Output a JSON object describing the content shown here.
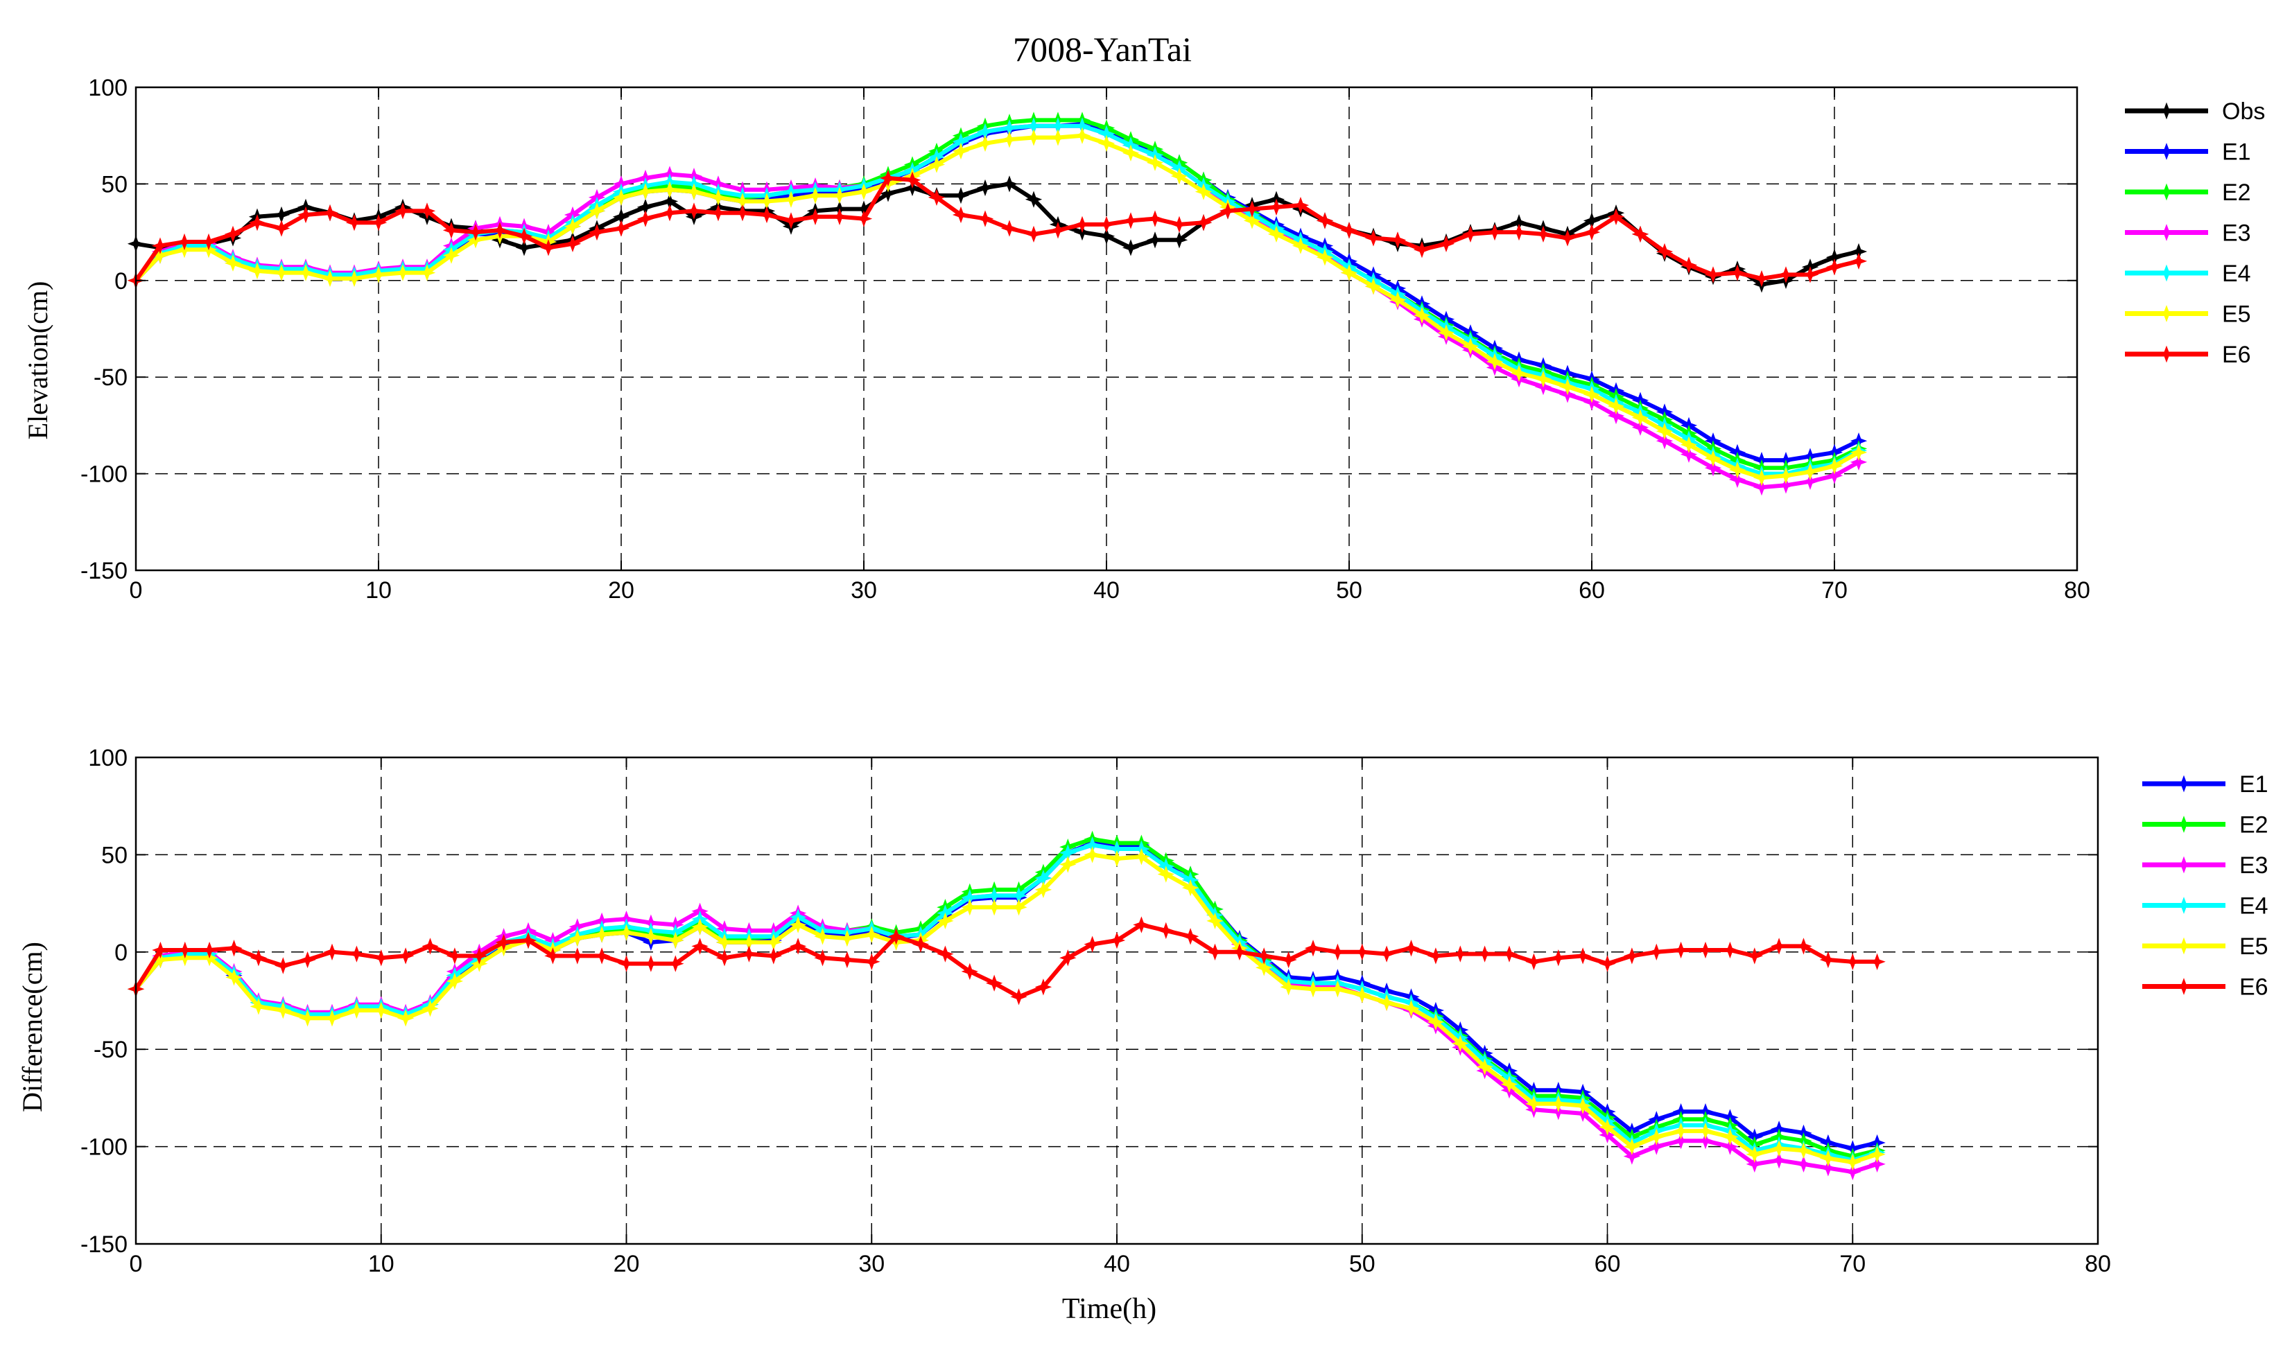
{
  "figure_title": "7008-YanTai",
  "chart_data": [
    {
      "type": "line",
      "id": "elevation",
      "title": "7008-YanTai",
      "xlabel": "",
      "ylabel": "Elevation(cm)",
      "xlim": [
        0,
        80
      ],
      "ylim": [
        -150,
        100
      ],
      "xticks": [
        0,
        10,
        20,
        30,
        40,
        50,
        60,
        70,
        80
      ],
      "yticks": [
        100,
        50,
        0,
        -50,
        -100,
        -150
      ],
      "grid": true,
      "legend_position": "outside-right",
      "x": [
        0,
        1,
        2,
        3,
        4,
        5,
        6,
        7,
        8,
        9,
        10,
        11,
        12,
        13,
        14,
        15,
        16,
        17,
        18,
        19,
        20,
        21,
        22,
        23,
        24,
        25,
        26,
        27,
        28,
        29,
        30,
        31,
        32,
        33,
        34,
        35,
        36,
        37,
        38,
        39,
        40,
        41,
        42,
        43,
        44,
        45,
        46,
        47,
        48,
        49,
        50,
        51,
        52,
        53,
        54,
        55,
        56,
        57,
        58,
        59,
        60,
        61,
        62,
        63,
        64,
        65,
        66,
        67,
        68,
        69,
        70,
        71
      ],
      "series": [
        {
          "name": "Obs",
          "color": "#000000",
          "values": [
            19,
            17,
            19,
            19,
            22,
            33,
            34,
            38,
            35,
            31,
            33,
            38,
            33,
            28,
            27,
            21,
            17,
            19,
            21,
            27,
            33,
            38,
            41,
            33,
            38,
            36,
            36,
            28,
            36,
            37,
            37,
            45,
            48,
            44,
            44,
            48,
            50,
            42,
            29,
            25,
            23,
            17,
            21,
            21,
            30,
            36,
            39,
            42,
            37,
            31,
            26,
            23,
            19,
            18,
            20,
            25,
            26,
            30,
            27,
            24,
            31,
            35,
            24,
            14,
            7,
            2,
            6,
            -2,
            0,
            7,
            12,
            15
          ]
        },
        {
          "name": "E1",
          "color": "#0000ff",
          "values": [
            0,
            13,
            17,
            17,
            10,
            7,
            6,
            6,
            3,
            3,
            5,
            6,
            6,
            15,
            24,
            24,
            23,
            20,
            28,
            36,
            43,
            46,
            47,
            46,
            43,
            41,
            42,
            44,
            46,
            46,
            48,
            52,
            57,
            63,
            71,
            76,
            78,
            80,
            80,
            81,
            77,
            72,
            67,
            61,
            52,
            43,
            36,
            29,
            23,
            18,
            10,
            3,
            -4,
            -12,
            -20,
            -27,
            -35,
            -41,
            -44,
            -48,
            -51,
            -57,
            -62,
            -68,
            -75,
            -83,
            -89,
            -93,
            -93,
            -91,
            -89,
            -83
          ]
        },
        {
          "name": "E2",
          "color": "#00ff00",
          "values": [
            0,
            14,
            18,
            18,
            11,
            7,
            6,
            6,
            3,
            3,
            5,
            6,
            6,
            16,
            25,
            26,
            25,
            22,
            30,
            38,
            45,
            48,
            49,
            48,
            45,
            43,
            44,
            46,
            48,
            48,
            50,
            55,
            60,
            67,
            75,
            80,
            82,
            83,
            83,
            83,
            79,
            73,
            68,
            61,
            52,
            42,
            35,
            27,
            21,
            15,
            7,
            0,
            -7,
            -15,
            -23,
            -30,
            -38,
            -44,
            -47,
            -51,
            -54,
            -60,
            -66,
            -72,
            -79,
            -87,
            -93,
            -97,
            -97,
            -95,
            -93,
            -87
          ]
        },
        {
          "name": "E3",
          "color": "#ff00ff",
          "values": [
            0,
            15,
            19,
            19,
            12,
            8,
            7,
            7,
            4,
            4,
            6,
            7,
            7,
            18,
            27,
            29,
            28,
            25,
            34,
            43,
            50,
            53,
            55,
            54,
            50,
            47,
            47,
            48,
            49,
            48,
            49,
            53,
            57,
            64,
            72,
            77,
            79,
            80,
            80,
            80,
            76,
            70,
            65,
            58,
            49,
            40,
            33,
            26,
            19,
            13,
            4,
            -3,
            -11,
            -20,
            -29,
            -36,
            -45,
            -51,
            -55,
            -59,
            -63,
            -70,
            -76,
            -83,
            -90,
            -97,
            -103,
            -107,
            -106,
            -104,
            -101,
            -94
          ]
        },
        {
          "name": "E4",
          "color": "#00ffff",
          "values": [
            0,
            14,
            18,
            18,
            11,
            7,
            6,
            6,
            3,
            3,
            5,
            6,
            6,
            16,
            24,
            26,
            25,
            22,
            30,
            39,
            46,
            49,
            51,
            50,
            46,
            44,
            44,
            46,
            47,
            47,
            49,
            53,
            57,
            64,
            72,
            77,
            79,
            80,
            80,
            80,
            76,
            70,
            65,
            58,
            49,
            41,
            34,
            27,
            21,
            15,
            7,
            0,
            -7,
            -16,
            -24,
            -31,
            -39,
            -46,
            -49,
            -53,
            -56,
            -63,
            -68,
            -75,
            -82,
            -90,
            -96,
            -100,
            -100,
            -97,
            -95,
            -88
          ]
        },
        {
          "name": "E5",
          "color": "#ffff00",
          "values": [
            0,
            13,
            16,
            16,
            9,
            5,
            4,
            4,
            1,
            1,
            3,
            4,
            4,
            13,
            21,
            23,
            23,
            20,
            28,
            36,
            43,
            46,
            47,
            46,
            43,
            41,
            41,
            42,
            44,
            44,
            46,
            50,
            54,
            60,
            67,
            71,
            73,
            74,
            74,
            75,
            71,
            66,
            61,
            54,
            46,
            38,
            31,
            24,
            18,
            12,
            4,
            -3,
            -10,
            -18,
            -27,
            -34,
            -42,
            -48,
            -51,
            -55,
            -59,
            -65,
            -71,
            -78,
            -85,
            -92,
            -98,
            -102,
            -101,
            -99,
            -96,
            -89
          ]
        },
        {
          "name": "E6",
          "color": "#ff0000",
          "values": [
            0,
            18,
            20,
            20,
            24,
            30,
            27,
            34,
            35,
            30,
            30,
            36,
            36,
            26,
            25,
            26,
            23,
            17,
            19,
            25,
            27,
            32,
            35,
            36,
            35,
            35,
            34,
            31,
            33,
            33,
            32,
            53,
            52,
            43,
            34,
            32,
            27,
            24,
            26,
            29,
            29,
            31,
            32,
            29,
            30,
            36,
            37,
            38,
            39,
            31,
            26,
            22,
            21,
            16,
            19,
            24,
            25,
            25,
            24,
            22,
            25,
            33,
            24,
            15,
            8,
            3,
            4,
            1,
            3,
            3,
            7,
            10
          ]
        }
      ]
    },
    {
      "type": "line",
      "id": "difference",
      "title": "",
      "xlabel": "Time(h)",
      "ylabel": "Difference(cm)",
      "xlim": [
        0,
        80
      ],
      "ylim": [
        -150,
        100
      ],
      "xticks": [
        0,
        10,
        20,
        30,
        40,
        50,
        60,
        70,
        80
      ],
      "yticks": [
        100,
        50,
        0,
        -50,
        -100,
        -150
      ],
      "grid": true,
      "legend_position": "outside-right",
      "x": [
        0,
        1,
        2,
        3,
        4,
        5,
        6,
        7,
        8,
        9,
        10,
        11,
        12,
        13,
        14,
        15,
        16,
        17,
        18,
        19,
        20,
        21,
        22,
        23,
        24,
        25,
        26,
        27,
        28,
        29,
        30,
        31,
        32,
        33,
        34,
        35,
        36,
        37,
        38,
        39,
        40,
        41,
        42,
        43,
        44,
        45,
        46,
        47,
        48,
        49,
        50,
        51,
        52,
        53,
        54,
        55,
        56,
        57,
        58,
        59,
        60,
        61,
        62,
        63,
        64,
        65,
        66,
        67,
        68,
        69,
        70,
        71
      ],
      "series": [
        {
          "name": "E1",
          "color": "#0000ff",
          "values": [
            -19,
            -4,
            -2,
            -2,
            -12,
            -26,
            -28,
            -32,
            -32,
            -28,
            -28,
            -32,
            -27,
            -13,
            -3,
            3,
            6,
            1,
            7,
            9,
            10,
            5,
            6,
            13,
            5,
            5,
            6,
            16,
            10,
            9,
            11,
            7,
            9,
            19,
            27,
            28,
            28,
            38,
            51,
            56,
            54,
            55,
            46,
            40,
            22,
            7,
            -3,
            -13,
            -14,
            -13,
            -16,
            -20,
            -23,
            -30,
            -40,
            -52,
            -61,
            -71,
            -71,
            -72,
            -82,
            -92,
            -86,
            -82,
            -82,
            -85,
            -95,
            -91,
            -93,
            -98,
            -101,
            -98
          ]
        },
        {
          "name": "E2",
          "color": "#00ff00",
          "values": [
            -19,
            -3,
            -1,
            -1,
            -11,
            -26,
            -28,
            -32,
            -32,
            -28,
            -28,
            -32,
            -27,
            -12,
            -2,
            5,
            8,
            3,
            9,
            11,
            12,
            10,
            8,
            15,
            7,
            7,
            8,
            18,
            12,
            11,
            13,
            10,
            12,
            23,
            31,
            32,
            32,
            41,
            54,
            58,
            56,
            56,
            47,
            40,
            22,
            6,
            -4,
            -15,
            -16,
            -16,
            -19,
            -23,
            -26,
            -33,
            -43,
            -55,
            -64,
            -74,
            -74,
            -75,
            -85,
            -95,
            -90,
            -86,
            -86,
            -89,
            -99,
            -95,
            -97,
            -102,
            -105,
            -102
          ]
        },
        {
          "name": "E3",
          "color": "#ff00ff",
          "values": [
            -19,
            -2,
            0,
            0,
            -10,
            -25,
            -27,
            -31,
            -31,
            -27,
            -27,
            -31,
            -26,
            -10,
            0,
            8,
            11,
            6,
            13,
            16,
            17,
            15,
            14,
            21,
            12,
            11,
            11,
            20,
            13,
            11,
            12,
            8,
            9,
            20,
            28,
            29,
            29,
            38,
            51,
            55,
            53,
            53,
            44,
            37,
            19,
            4,
            -6,
            -16,
            -18,
            -18,
            -22,
            -26,
            -30,
            -38,
            -49,
            -61,
            -71,
            -81,
            -82,
            -83,
            -94,
            -105,
            -100,
            -97,
            -97,
            -100,
            -109,
            -107,
            -109,
            -111,
            -113,
            -109
          ]
        },
        {
          "name": "E4",
          "color": "#00ffff",
          "values": [
            -19,
            -3,
            -1,
            -1,
            -11,
            -26,
            -28,
            -32,
            -32,
            -28,
            -28,
            -32,
            -27,
            -12,
            -3,
            5,
            8,
            3,
            9,
            12,
            13,
            11,
            10,
            17,
            8,
            8,
            8,
            18,
            11,
            10,
            12,
            8,
            9,
            20,
            28,
            29,
            29,
            38,
            51,
            55,
            53,
            53,
            44,
            37,
            19,
            5,
            -5,
            -15,
            -16,
            -16,
            -19,
            -23,
            -26,
            -34,
            -44,
            -56,
            -65,
            -76,
            -76,
            -77,
            -87,
            -98,
            -92,
            -89,
            -89,
            -92,
            -102,
            -99,
            -101,
            -104,
            -107,
            -103
          ]
        },
        {
          "name": "E5",
          "color": "#ffff00",
          "values": [
            -19,
            -4,
            -3,
            -3,
            -13,
            -28,
            -30,
            -34,
            -34,
            -30,
            -30,
            -34,
            -29,
            -15,
            -6,
            2,
            6,
            1,
            7,
            9,
            10,
            8,
            6,
            13,
            5,
            5,
            5,
            14,
            8,
            7,
            9,
            5,
            6,
            16,
            23,
            23,
            23,
            32,
            45,
            50,
            48,
            49,
            40,
            33,
            16,
            2,
            -8,
            -18,
            -19,
            -19,
            -22,
            -26,
            -29,
            -36,
            -47,
            -59,
            -68,
            -78,
            -78,
            -79,
            -90,
            -100,
            -95,
            -92,
            -92,
            -95,
            -104,
            -101,
            -102,
            -106,
            -108,
            -104
          ]
        },
        {
          "name": "E6",
          "color": "#ff0000",
          "values": [
            -19,
            1,
            1,
            1,
            2,
            -3,
            -7,
            -4,
            0,
            -1,
            -3,
            -2,
            3,
            -2,
            -2,
            5,
            6,
            -2,
            -2,
            -2,
            -6,
            -6,
            -6,
            3,
            -3,
            -1,
            -2,
            3,
            -3,
            -4,
            -5,
            8,
            4,
            -1,
            -10,
            -16,
            -23,
            -18,
            -3,
            4,
            6,
            14,
            11,
            8,
            0,
            0,
            -2,
            -4,
            2,
            0,
            0,
            -1,
            2,
            -2,
            -1,
            -1,
            -1,
            -5,
            -3,
            -2,
            -6,
            -2,
            0,
            1,
            1,
            1,
            -2,
            3,
            3,
            -4,
            -5,
            -5
          ]
        }
      ]
    }
  ]
}
